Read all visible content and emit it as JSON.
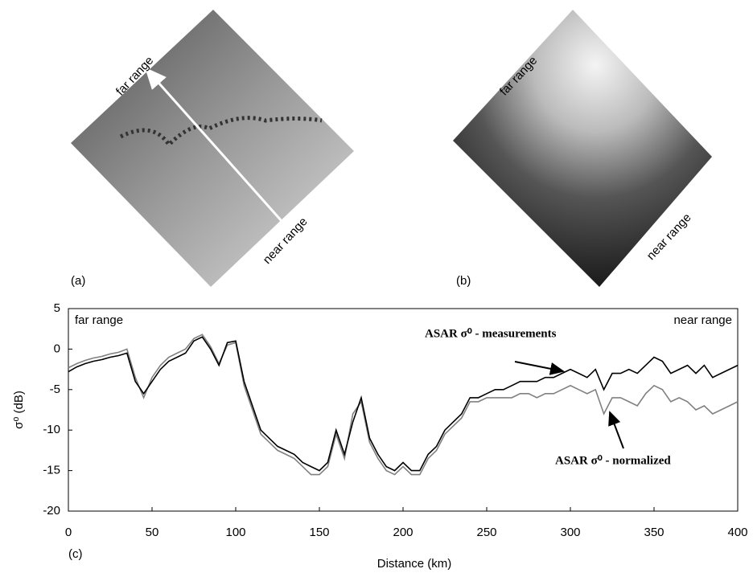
{
  "images": [
    {
      "label": "(a)",
      "top_label": "far range",
      "bottom_label": "near range"
    },
    {
      "label": "(b)",
      "top_label": "far range",
      "bottom_label": "near range"
    }
  ],
  "chart_data": {
    "type": "line",
    "panel_label": "(c)",
    "xlabel": "Distance (km)",
    "ylabel": "σ⁰ (dB)",
    "left_label": "far range",
    "right_label": "near range",
    "xlim": [
      0,
      400
    ],
    "xticks": [
      0,
      50,
      100,
      150,
      200,
      250,
      300,
      350,
      400
    ],
    "ylim": [
      -20,
      5
    ],
    "yticks": [
      -20,
      -15,
      -10,
      -5,
      0,
      5
    ],
    "grid": false,
    "x": [
      0,
      5,
      10,
      15,
      20,
      25,
      30,
      35,
      40,
      45,
      50,
      55,
      60,
      65,
      70,
      75,
      80,
      85,
      90,
      95,
      100,
      105,
      110,
      115,
      120,
      125,
      130,
      135,
      140,
      145,
      150,
      155,
      160,
      165,
      170,
      175,
      180,
      185,
      190,
      195,
      200,
      205,
      210,
      215,
      220,
      225,
      230,
      235,
      240,
      245,
      250,
      255,
      260,
      265,
      270,
      275,
      280,
      285,
      290,
      295,
      300,
      305,
      310,
      315,
      320,
      325,
      330,
      335,
      340,
      345,
      350,
      355,
      360,
      365,
      370,
      375,
      380,
      385,
      390,
      395,
      400
    ],
    "series": [
      {
        "name": "ASAR σ⁰ - normalized",
        "color": "#808080",
        "values": [
          -2.3,
          -1.8,
          -1.4,
          -1.1,
          -0.9,
          -0.6,
          -0.4,
          0,
          -3.5,
          -6,
          -3.5,
          -2,
          -1,
          -0.5,
          0,
          1.3,
          1.8,
          0.3,
          -1.8,
          0.5,
          0.8,
          -4.5,
          -7.5,
          -10.5,
          -11.5,
          -12.5,
          -13,
          -13.5,
          -14.5,
          -15.5,
          -15.5,
          -14.5,
          -10.5,
          -13.5,
          -8,
          -6.5,
          -11.5,
          -13.5,
          -15,
          -15.5,
          -14.5,
          -15.5,
          -15.5,
          -13.5,
          -12.5,
          -10.5,
          -9.5,
          -8.5,
          -6.5,
          -6.5,
          -6,
          -6,
          -6,
          -6,
          -5.5,
          -5.5,
          -6,
          -5.5,
          -5.5,
          -5,
          -4.5,
          -5,
          -5.5,
          -5,
          -8,
          -6,
          -6,
          -6.5,
          -7,
          -5.5,
          -4.5,
          -5,
          -6.5,
          -6,
          -6.5,
          -7.5,
          -7,
          -8,
          -7.5,
          -7,
          -6.5
        ]
      },
      {
        "name": "ASAR σ⁰ - measurements",
        "color": "#000000",
        "values": [
          -2.8,
          -2.2,
          -1.8,
          -1.5,
          -1.3,
          -1,
          -0.8,
          -0.5,
          -4,
          -5.5,
          -4,
          -2.5,
          -1.5,
          -1,
          -0.5,
          1,
          1.5,
          0,
          -2,
          0.8,
          1,
          -4,
          -7,
          -10,
          -11,
          -12,
          -12.5,
          -13,
          -14,
          -14.5,
          -15,
          -14,
          -10,
          -13,
          -9,
          -6,
          -11,
          -13,
          -14.5,
          -15,
          -14,
          -15,
          -15,
          -13,
          -12,
          -10,
          -9,
          -8,
          -6,
          -6,
          -5.5,
          -5,
          -5,
          -4.5,
          -4,
          -4,
          -4,
          -3.5,
          -3.5,
          -3,
          -2.5,
          -3,
          -3.5,
          -2.5,
          -5,
          -3,
          -3,
          -2.5,
          -3,
          -2,
          -1,
          -1.5,
          -3,
          -2.5,
          -2,
          -3,
          -2,
          -3.5,
          -3,
          -2.5,
          -2
        ]
      }
    ]
  }
}
